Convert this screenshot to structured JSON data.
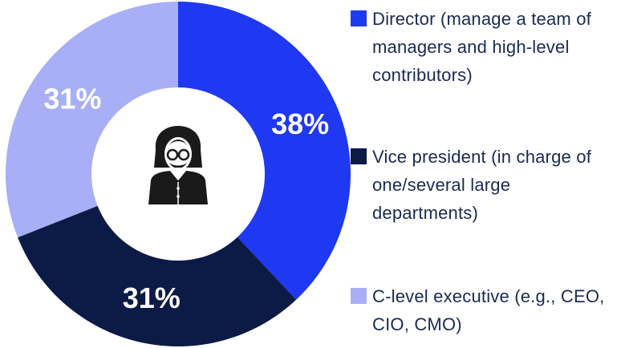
{
  "chart_data": {
    "type": "donut",
    "categories": [
      "Director (manage a team of managers and high-level contributors)",
      "Vice president (in charge of one/several large departments)",
      "C-level executive (e.g., CEO, CIO, CMO)"
    ],
    "values": [
      38,
      31,
      31
    ],
    "value_labels": [
      "38%",
      "31%",
      "31%"
    ],
    "colors": [
      "#1f38f2",
      "#0c1a46",
      "#a8aff7"
    ],
    "legend": "right"
  }
}
